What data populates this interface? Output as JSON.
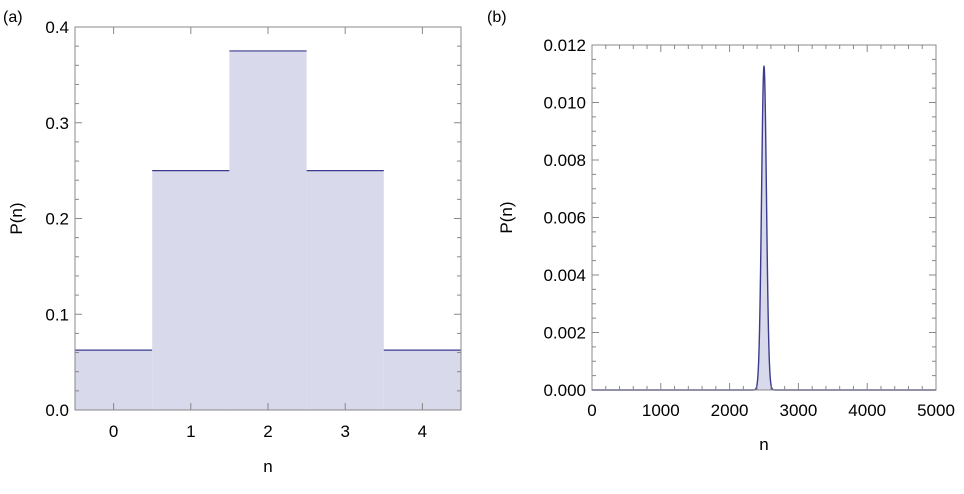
{
  "chart_data": [
    {
      "panel_label": "(a)",
      "type": "bar",
      "style": "step-histogram",
      "xlabel": "n",
      "ylabel": "P(n)",
      "categories": [
        "0",
        "1",
        "2",
        "3",
        "4"
      ],
      "values": [
        0.0625,
        0.25,
        0.375,
        0.25,
        0.0625
      ],
      "xlim": [
        -0.5,
        4.5
      ],
      "ylim": [
        0,
        0.4
      ],
      "yticks": [
        "0.0",
        "0.1",
        "0.2",
        "0.3",
        "0.4"
      ],
      "grid": false,
      "line_color": "#3b3b8f",
      "fill_color": "#d8d9ea"
    },
    {
      "panel_label": "(b)",
      "type": "area",
      "xlabel": "n",
      "ylabel": "P(n)",
      "xlim": [
        0,
        5000
      ],
      "ylim": [
        0,
        0.012
      ],
      "xticks": [
        "0",
        "1000",
        "2000",
        "3000",
        "4000",
        "5000"
      ],
      "yticks": [
        "0.000",
        "0.002",
        "0.004",
        "0.006",
        "0.008",
        "0.010",
        "0.012"
      ],
      "peak_x": 2500,
      "peak_y": 0.01128,
      "std_dev": 35.36,
      "grid": false,
      "line_color": "#3b3b8f",
      "fill_color": "#d8d9ea"
    }
  ]
}
